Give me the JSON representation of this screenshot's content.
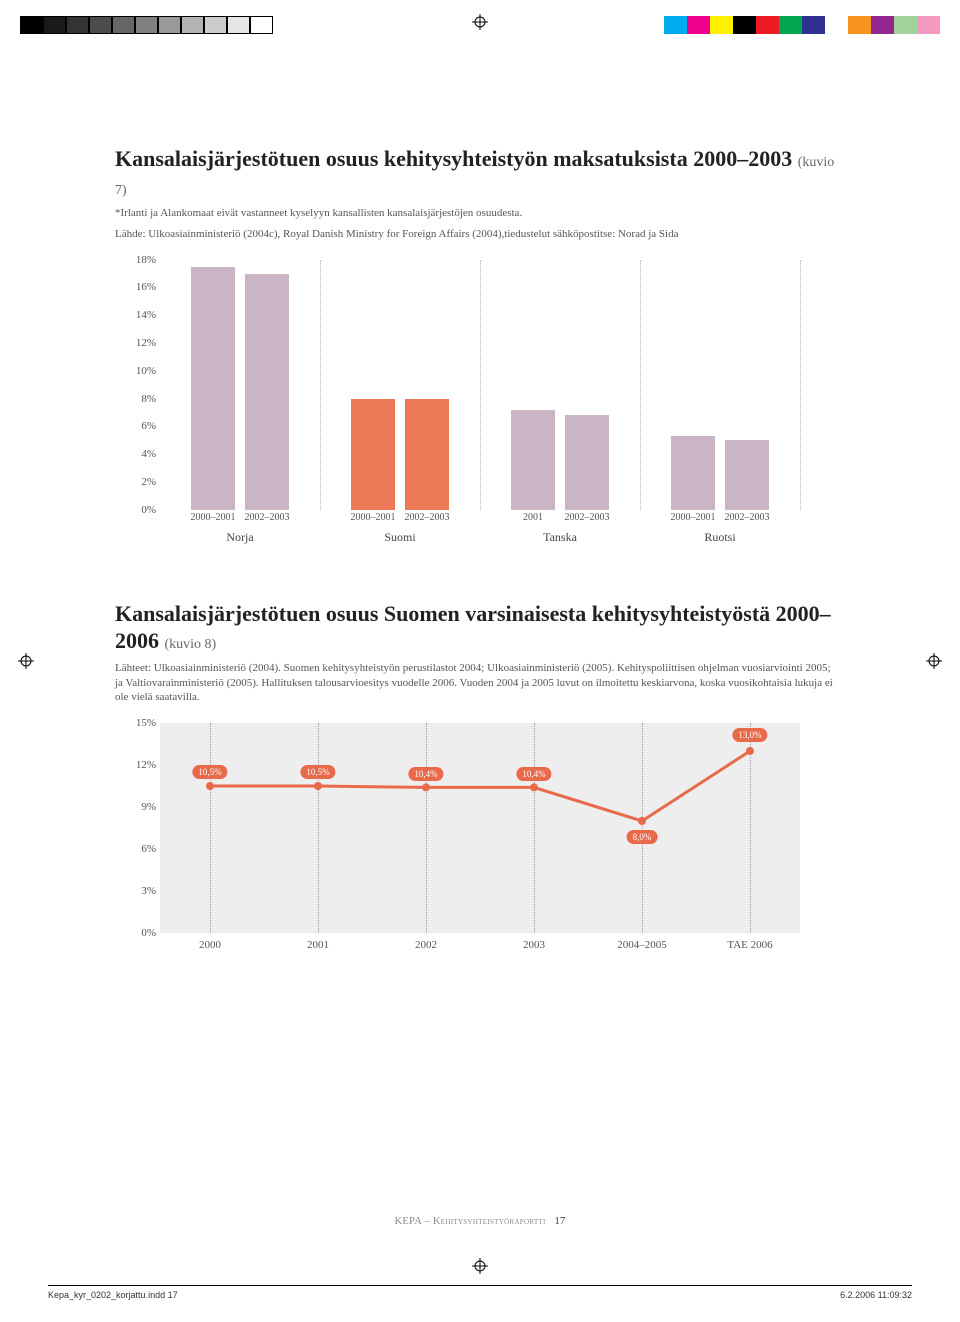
{
  "print_marks": {
    "grays": [
      "#000000",
      "#1a1a1a",
      "#333333",
      "#4d4d4d",
      "#666666",
      "#808080",
      "#999999",
      "#b3b3b3",
      "#cccccc",
      "#e6e6e6",
      "#ffffff"
    ],
    "colors": [
      "#00aeef",
      "#ec008c",
      "#fff200",
      "#000000",
      "#ed1c24",
      "#00a651",
      "#2e3192",
      "#ffffff",
      "#f7941d",
      "#92278f",
      "#a3d39c",
      "#f49ac1"
    ]
  },
  "chart1": {
    "title": "Kansalaisjärjestötuen osuus kehitysyhteistyön maksatuksista 2000–2003",
    "title_suffix": "(kuvio 7)",
    "note_line1": "*Irlanti ja Alankomaat eivät vastanneet kyselyyn kansallisten kansalaisjärjestöjen osuudesta.",
    "note_line2": "Lähde: Ulkoasiainministeriö (2004c), Royal Danish Ministry for Foreign Affairs (2004),tiedustelut sähköpostitse: Norad ja Sida",
    "type": "bar",
    "ylim": [
      0,
      18
    ],
    "ytick_step": 2,
    "y_suffix": "%",
    "groups": [
      {
        "label": "Norja",
        "sub": [
          "2000–2001",
          "2002–2003"
        ],
        "values": [
          17.5,
          17.0
        ],
        "colors": [
          "#c9b5c4",
          "#c9b5c4"
        ]
      },
      {
        "label": "Suomi",
        "sub": [
          "2000–2001",
          "2002–2003"
        ],
        "values": [
          8.0,
          8.0
        ],
        "colors": [
          "#ed7856",
          "#ed7856"
        ]
      },
      {
        "label": "Tanska",
        "sub": [
          "2001",
          "2002–2003"
        ],
        "values": [
          7.2,
          6.8
        ],
        "colors": [
          "#c9b5c4",
          "#c9b5c4"
        ]
      },
      {
        "label": "Ruotsi",
        "sub": [
          "2000–2001",
          "2002–2003"
        ],
        "values": [
          5.3,
          5.0
        ],
        "colors": [
          "#c9b5c4",
          "#c9b5c4"
        ]
      }
    ],
    "grid_color": "#bbbbbb"
  },
  "chart2": {
    "title": "Kansalaisjärjestötuen osuus Suomen varsinaisesta kehitysyhteistyöstä 2000–2006",
    "title_suffix": "(kuvio 8)",
    "note": "Lähteet: Ulkoasiainministeriö (2004). Suomen kehitysyhteistyön perustilastot 2004; Ulkoasiainministeriö (2005). Kehityspoliittisen ohjelman vuosiarviointi 2005; ja Valtiovarainministeriö (2005). Hallituksen talousarvioesitys vuodelle 2006. Vuoden 2004 ja 2005 luvut on ilmoitettu keskiarvona, koska vuosikohtaisia lukuja ei ole vielä saatavilla.",
    "type": "line",
    "ylim": [
      0,
      15
    ],
    "ytick_step": 3,
    "y_suffix": "%",
    "categories": [
      "2000",
      "2001",
      "2002",
      "2003",
      "2004–2005",
      "TAE 2006"
    ],
    "values": [
      10.5,
      10.5,
      10.4,
      10.4,
      8.0,
      13.0
    ],
    "point_labels": [
      "10,5%",
      "10,5%",
      "10,4%",
      "10,4%",
      "8,0%",
      "13,0%"
    ],
    "line_color": "#e86a4a",
    "line_width": 3,
    "bg_color": "#eeeeee",
    "grid_color": "#999999"
  },
  "footer": {
    "text": "KEPA – Kehitysyhteistyöraportti",
    "page": "17"
  },
  "slug": {
    "file": "Kepa_kyr_0202_korjattu.indd   17",
    "stamp": "6.2.2006   11:09:32"
  }
}
